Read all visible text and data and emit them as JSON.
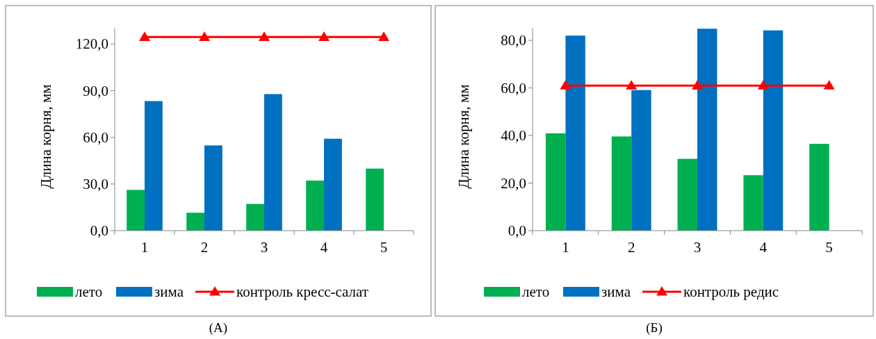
{
  "chart_data": [
    {
      "type": "bar",
      "annotations": [
        "(А)"
      ],
      "ylabel": "Длина корня, мм",
      "categories": [
        "1",
        "2",
        "3",
        "4",
        "5"
      ],
      "ylim": [
        0,
        130
      ],
      "yticks": [
        {
          "value": 0,
          "label": "0,0"
        },
        {
          "value": 30,
          "label": "30,0"
        },
        {
          "value": 60,
          "label": "60,0"
        },
        {
          "value": 90,
          "label": "90,0"
        },
        {
          "value": 120,
          "label": "120,0"
        }
      ],
      "grid": false,
      "legend": "bottom",
      "series": [
        {
          "name": "лето",
          "color": "#00b050",
          "values": [
            26.2,
            11.5,
            17.2,
            32.2,
            39.9
          ]
        },
        {
          "name": "зима",
          "color": "#0070c0",
          "values": [
            83.3,
            54.8,
            87.8,
            59.1,
            null
          ]
        },
        {
          "name": "контроль кресс-салат",
          "type": "line",
          "color": "#ff0000",
          "marker": "triangle",
          "values": [
            124.5,
            124.5,
            124.5,
            124.5,
            124.5
          ]
        }
      ]
    },
    {
      "type": "bar",
      "annotations": [
        "(Б)"
      ],
      "ylabel": "Длина корня, мм",
      "categories": [
        "1",
        "2",
        "3",
        "4",
        "5"
      ],
      "ylim": [
        0,
        85
      ],
      "yticks": [
        {
          "value": 0,
          "label": "0,0"
        },
        {
          "value": 20,
          "label": "20,0"
        },
        {
          "value": 40,
          "label": "40,0"
        },
        {
          "value": 60,
          "label": "60,0"
        },
        {
          "value": 80,
          "label": "80,0"
        }
      ],
      "grid": false,
      "legend": "bottom",
      "series": [
        {
          "name": "лето",
          "color": "#00b050",
          "values": [
            40.9,
            39.6,
            30.2,
            23.3,
            36.5
          ]
        },
        {
          "name": "зима",
          "color": "#0070c0",
          "values": [
            82.0,
            59.1,
            84.9,
            84.2,
            null
          ]
        },
        {
          "name": "контроль редис",
          "type": "line",
          "color": "#ff0000",
          "marker": "triangle",
          "values": [
            61.0,
            61.0,
            61.0,
            61.0,
            61.0
          ]
        }
      ]
    }
  ]
}
